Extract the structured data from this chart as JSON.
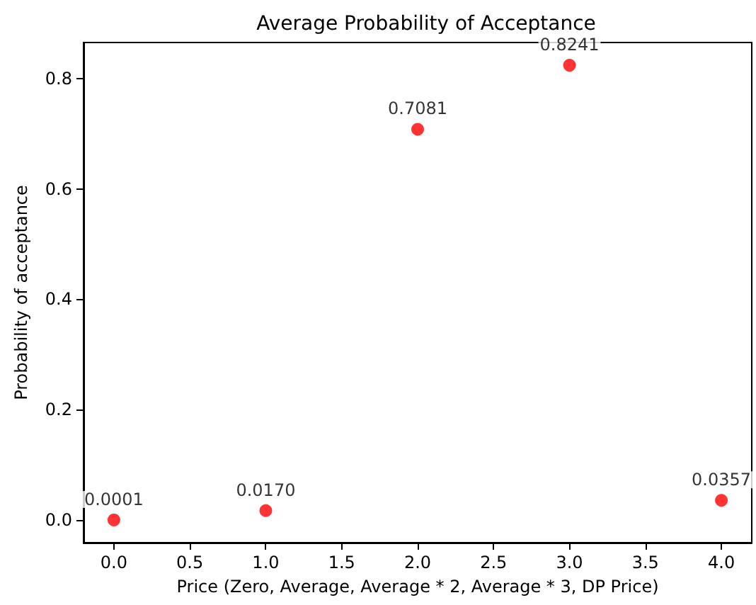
{
  "chart_data": {
    "type": "scatter",
    "title": "Average Probability of Acceptance",
    "xlabel": "Price (Zero, Average, Average * 2, Average * 3, DP Price)",
    "ylabel": "Probability of acceptance",
    "x": [
      0,
      1,
      2,
      3,
      4
    ],
    "series": [
      {
        "color": "#ff0000",
        "values": [
          0.0001,
          0.017,
          0.7081,
          0.8241,
          0.0357
        ],
        "value_labels": [
          "0.0001",
          "0.0170",
          "0.7081",
          "0.8241",
          "0.0357"
        ]
      }
    ],
    "xlim": [
      -0.2,
      4.2
    ],
    "ylim": [
      -0.0411,
      0.8653
    ],
    "xticks": [
      {
        "value": 0,
        "label": "0.0"
      },
      {
        "value": 0.5,
        "label": "0.5"
      },
      {
        "value": 1,
        "label": "1.0"
      },
      {
        "value": 1.5,
        "label": "1.5"
      },
      {
        "value": 2,
        "label": "2.0"
      },
      {
        "value": 2.5,
        "label": "2.5"
      },
      {
        "value": 3,
        "label": "3.0"
      },
      {
        "value": 3.5,
        "label": "3.5"
      },
      {
        "value": 4,
        "label": "4.0"
      }
    ],
    "yticks": [
      {
        "value": 0,
        "label": "0.0"
      },
      {
        "value": 0.2,
        "label": "0.2"
      },
      {
        "value": 0.4,
        "label": "0.4"
      },
      {
        "value": 0.6,
        "label": "0.6"
      },
      {
        "value": 0.8,
        "label": "0.8"
      }
    ],
    "marker": "circle",
    "grid": false
  }
}
